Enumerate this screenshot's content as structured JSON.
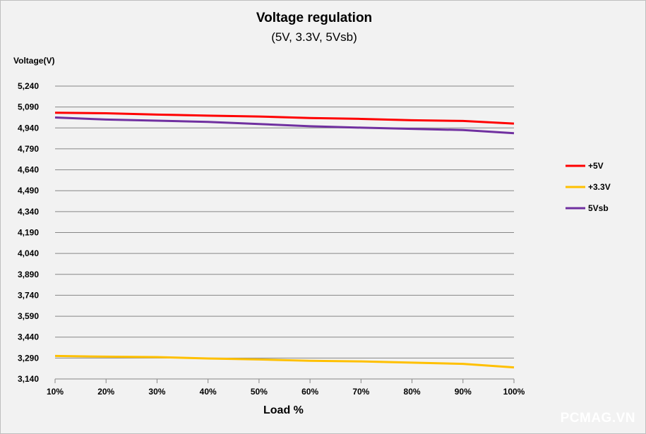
{
  "chart_data": {
    "type": "line",
    "title": "Voltage regulation",
    "subtitle": "(5V, 3.3V, 5Vsb)",
    "ylabel": "Voltage(V)",
    "xlabel": "Load %",
    "categories": [
      "10%",
      "20%",
      "30%",
      "40%",
      "50%",
      "60%",
      "70%",
      "80%",
      "90%",
      "100%"
    ],
    "ylim": [
      3140,
      5240
    ],
    "yticks": [
      3140,
      3290,
      3440,
      3590,
      3740,
      3890,
      4040,
      4190,
      4340,
      4490,
      4640,
      4790,
      4940,
      5090,
      5240
    ],
    "ytick_labels": [
      "3,140",
      "3,290",
      "3,440",
      "3,590",
      "3,740",
      "3,890",
      "4,040",
      "4,190",
      "4,340",
      "4,490",
      "4,640",
      "4,790",
      "4,940",
      "5,090",
      "5,240"
    ],
    "grid": true,
    "legend_position": "right",
    "series": [
      {
        "name": "+5V",
        "color": "#ff0000",
        "values": [
          5049,
          5045,
          5036,
          5028,
          5022,
          5011,
          5005,
          4995,
          4990,
          4971
        ]
      },
      {
        "name": "+3.3V",
        "color": "#ffc000",
        "values": [
          3305,
          3300,
          3297,
          3287,
          3280,
          3270,
          3266,
          3257,
          3248,
          3223
        ]
      },
      {
        "name": "5Vsb",
        "color": "#7030a0",
        "values": [
          5015,
          5000,
          4992,
          4983,
          4968,
          4952,
          4942,
          4933,
          4925,
          4902
        ]
      }
    ]
  },
  "watermark": "PCMAG.VN"
}
